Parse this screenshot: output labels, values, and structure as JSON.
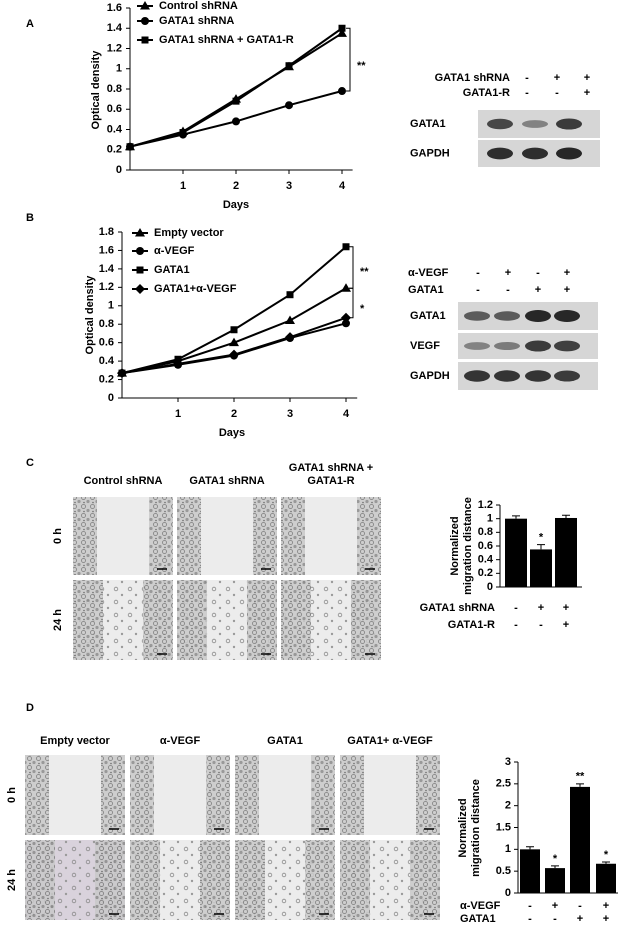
{
  "panel_labels": [
    "A",
    "B",
    "C",
    "D"
  ],
  "chart_data": [
    {
      "type": "line",
      "x": [
        0,
        1,
        2,
        3,
        4
      ],
      "xlim": [
        0,
        4.2
      ],
      "xticks": [
        1,
        2,
        3,
        4
      ],
      "ylim": [
        0,
        1.6
      ],
      "yticks": [
        0,
        0.2,
        0.4,
        0.6,
        0.8,
        1,
        1.2,
        1.4,
        1.6
      ],
      "xlabel": "Days",
      "ylabel": "Optical density",
      "series": [
        {
          "name": "Control shRNA",
          "marker": "triangle",
          "color": "#000000",
          "values": [
            0.23,
            0.38,
            0.7,
            1.02,
            1.35
          ]
        },
        {
          "name": "GATA1 shRNA",
          "marker": "circle",
          "color": "#000000",
          "values": [
            0.23,
            0.35,
            0.48,
            0.64,
            0.78
          ]
        },
        {
          "name": "GATA1 shRNA + GATA1-R",
          "marker": "square",
          "color": "#000000",
          "values": [
            0.23,
            0.37,
            0.68,
            1.03,
            1.4
          ]
        }
      ],
      "annotations": [
        "**"
      ]
    },
    {
      "type": "line",
      "x": [
        0,
        1,
        2,
        3,
        4
      ],
      "xlim": [
        0,
        4.2
      ],
      "xticks": [
        1,
        2,
        3,
        4
      ],
      "ylim": [
        0,
        1.8
      ],
      "yticks": [
        0,
        0.2,
        0.4,
        0.6,
        0.8,
        1,
        1.2,
        1.4,
        1.6,
        1.8
      ],
      "xlabel": "Days",
      "ylabel": "Optical density",
      "series": [
        {
          "name": "Empty vector",
          "marker": "triangle",
          "color": "#000000",
          "values": [
            0.27,
            0.4,
            0.6,
            0.84,
            1.19
          ]
        },
        {
          "name": "α-VEGF",
          "marker": "circle",
          "color": "#000000",
          "values": [
            0.27,
            0.36,
            0.46,
            0.65,
            0.81
          ]
        },
        {
          "name": "GATA1",
          "marker": "square",
          "color": "#000000",
          "values": [
            0.27,
            0.42,
            0.74,
            1.12,
            1.64
          ]
        },
        {
          "name": "GATA1+α-VEGF",
          "marker": "diamond",
          "color": "#000000",
          "values": [
            0.27,
            0.37,
            0.47,
            0.66,
            0.87
          ]
        }
      ],
      "annotations": [
        "**",
        "*"
      ]
    },
    {
      "type": "bar",
      "values": [
        1,
        0.55,
        1.01
      ],
      "errors": [
        0.04,
        0.07,
        0.04
      ],
      "annotations": [
        null,
        "*",
        null
      ],
      "color": "#000000",
      "ylim": [
        0,
        1.2
      ],
      "yticks": [
        0,
        0.2,
        0.4,
        0.6,
        0.8,
        1,
        1.2
      ],
      "ylabel": "Normalized migration distance",
      "conditions": [
        {
          "name": "GATA1 shRNA",
          "signs": [
            "-",
            "+",
            "+"
          ]
        },
        {
          "name": "GATA1-R",
          "signs": [
            "-",
            "-",
            "+"
          ]
        }
      ]
    },
    {
      "type": "bar",
      "values": [
        1,
        0.57,
        2.43,
        0.67
      ],
      "errors": [
        0.06,
        0.05,
        0.07,
        0.04
      ],
      "annotations": [
        null,
        "*",
        "**",
        "*"
      ],
      "color": "#000000",
      "ylim": [
        0,
        3
      ],
      "yticks": [
        0,
        0.5,
        1,
        1.5,
        2,
        2.5,
        3
      ],
      "ylabel": "Normalized migration distance",
      "conditions": [
        {
          "name": "α-VEGF",
          "signs": [
            "-",
            "+",
            "-",
            "+"
          ]
        },
        {
          "name": "GATA1",
          "signs": [
            "-",
            "-",
            "+",
            "+"
          ]
        }
      ]
    }
  ],
  "blots": [
    {
      "conditions": [
        {
          "name": "GATA1 shRNA",
          "signs": [
            "-",
            "+",
            "+"
          ]
        },
        {
          "name": "GATA1-R",
          "signs": [
            "-",
            "-",
            "+"
          ]
        }
      ],
      "bands": [
        "GATA1",
        "GAPDH"
      ]
    },
    {
      "conditions": [
        {
          "name": "α-VEGF",
          "signs": [
            "-",
            "+",
            "-",
            "+"
          ]
        },
        {
          "name": "GATA1",
          "signs": [
            "-",
            "-",
            "+",
            "+"
          ]
        }
      ],
      "bands": [
        "GATA1",
        "VEGF",
        "GAPDH"
      ]
    }
  ],
  "micrographs": [
    {
      "columns": [
        "Control shRNA",
        "GATA1 shRNA",
        "GATA1 shRNA + GATA1-R"
      ],
      "rows": [
        "0 h",
        "24 h"
      ]
    },
    {
      "columns": [
        "Empty vector",
        "α-VEGF",
        "GATA1",
        "GATA1+ α-VEGF"
      ],
      "rows": [
        "0 h",
        "24 h"
      ]
    }
  ]
}
